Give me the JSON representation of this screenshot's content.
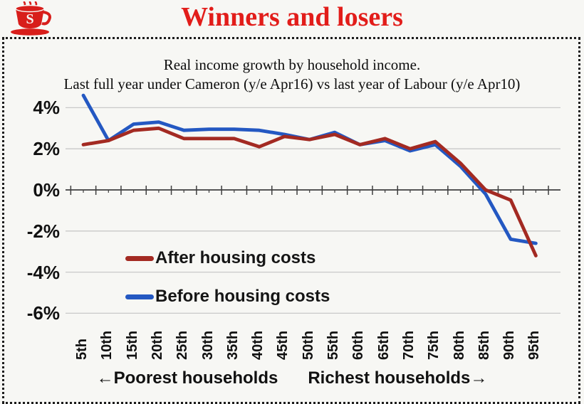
{
  "header": {
    "title": "Winners and losers",
    "logo_icon": "red-teacup-with-s-logo"
  },
  "subtitle": {
    "line1": "Real income growth by household income.",
    "line2": "Last full year under Cameron (y/e Apr16) vs last year of Labour (y/e Apr10)"
  },
  "legend": [
    {
      "label": "After housing costs",
      "color": "#a32a22"
    },
    {
      "label": "Before housing costs",
      "color": "#2458c2"
    }
  ],
  "x_axis_caption": {
    "left": "←Poorest households",
    "right": "Richest households→"
  },
  "colors": {
    "title_red": "#e21d1a",
    "after_housing": "#a32a22",
    "before_housing": "#2458c2",
    "gridline": "#c9c9c9",
    "axis": "#3f3f3f"
  },
  "chart_data": {
    "type": "line",
    "title": "Winners and losers",
    "subtitle": "Real income growth by household income. Last full year under Cameron (y/e Apr16) vs last year of Labour (y/e Apr10)",
    "categories": [
      "5th",
      "10th",
      "15th",
      "20th",
      "25th",
      "30th",
      "35th",
      "40th",
      "45th",
      "50th",
      "55th",
      "60th",
      "65th",
      "70th",
      "75th",
      "80th",
      "85th",
      "90th",
      "95th"
    ],
    "series": [
      {
        "name": "Before housing costs",
        "color": "#2458c2",
        "values": [
          4.6,
          2.4,
          3.2,
          3.3,
          2.9,
          2.95,
          2.95,
          2.9,
          2.7,
          2.45,
          2.8,
          2.2,
          2.4,
          1.9,
          2.2,
          1.15,
          -0.2,
          -2.4,
          -2.6
        ]
      },
      {
        "name": "After housing costs",
        "color": "#a32a22",
        "values": [
          2.2,
          2.4,
          2.9,
          3.0,
          2.5,
          2.5,
          2.5,
          2.1,
          2.6,
          2.45,
          2.7,
          2.2,
          2.5,
          2.0,
          2.35,
          1.3,
          0.0,
          -0.5,
          -3.2
        ]
      }
    ],
    "y_ticks": [
      {
        "label": "4%",
        "value": 4
      },
      {
        "label": "2%",
        "value": 2
      },
      {
        "label": "0%",
        "value": 0
      },
      {
        "label": "-2%",
        "value": -2
      },
      {
        "label": "-4%",
        "value": -4
      },
      {
        "label": "-6%",
        "value": -6
      }
    ],
    "gridlines": [
      4,
      2,
      -2,
      -4,
      -6
    ],
    "ylim": [
      -6.5,
      5
    ],
    "xlabel_note": "←Poorest households   Richest households→",
    "legend_position": "inside-lower-left",
    "grid": true
  }
}
